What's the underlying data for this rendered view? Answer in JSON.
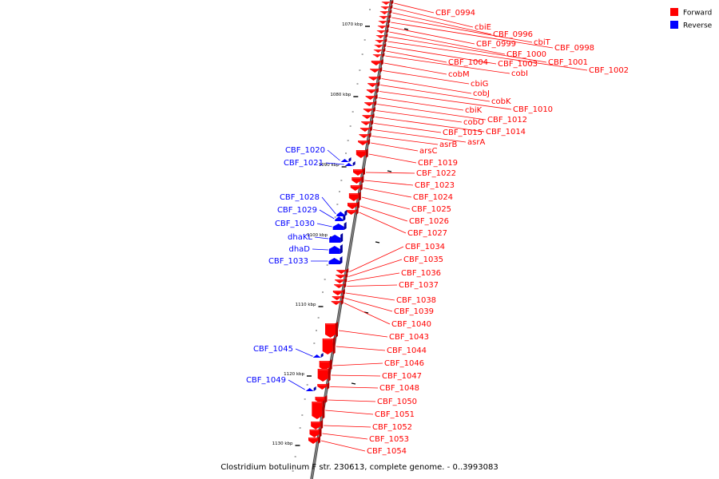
{
  "caption": "Clostridium botulinum F str. 230613, complete genome. - 0..3993083",
  "legend": [
    {
      "label": "Forward",
      "color": "#ff0000"
    },
    {
      "label": "Reverse",
      "color": "#0000ff"
    }
  ],
  "colors": {
    "forward": "#ff0000",
    "forward_dark": "#b00000",
    "reverse": "#0000ff",
    "reverse_dark": "#0000a0",
    "backbone": "#808080"
  },
  "ticks": [
    {
      "label": "1070 kbp",
      "kbp": 1070
    },
    {
      "label": "1080 kbp",
      "kbp": 1080
    },
    {
      "label": "1090 kbp",
      "kbp": 1090
    },
    {
      "label": "1100 kbp",
      "kbp": 1100
    },
    {
      "label": "1110 kbp",
      "kbp": 1110
    },
    {
      "label": "1120 kbp",
      "kbp": 1120
    },
    {
      "label": "1130 kbp",
      "kbp": 1130
    }
  ],
  "forward_genes": [
    "CBF_0994",
    "cbiE",
    "CBF_0996",
    "cbiT",
    "CBF_0998",
    "CBF_0999",
    "CBF_1000",
    "CBF_1001",
    "CBF_1002",
    "CBF_1003",
    "CBF_1004",
    "cobI",
    "cobM",
    "cbiG",
    "cobJ",
    "cobK",
    "CBF_1010",
    "cbiK",
    "CBF_1012",
    "cobO",
    "CBF_1014",
    "CBF_1015",
    "asrA",
    "asrB",
    "arsC",
    "CBF_1019",
    "CBF_1022",
    "CBF_1023",
    "CBF_1024",
    "CBF_1025",
    "CBF_1026",
    "CBF_1027",
    "CBF_1034",
    "CBF_1035",
    "CBF_1036",
    "CBF_1037",
    "CBF_1038",
    "CBF_1039",
    "CBF_1040",
    "CBF_1043",
    "CBF_1044",
    "CBF_1046",
    "CBF_1047",
    "CBF_1048",
    "CBF_1050",
    "CBF_1051",
    "CBF_1052",
    "CBF_1053",
    "CBF_1054"
  ],
  "reverse_genes": [
    "CBF_1020",
    "CBF_1021",
    "CBF_1028",
    "CBF_1029",
    "CBF_1030",
    "dhaKL",
    "dhaD",
    "CBF_1033",
    "CBF_1045",
    "CBF_1049"
  ]
}
